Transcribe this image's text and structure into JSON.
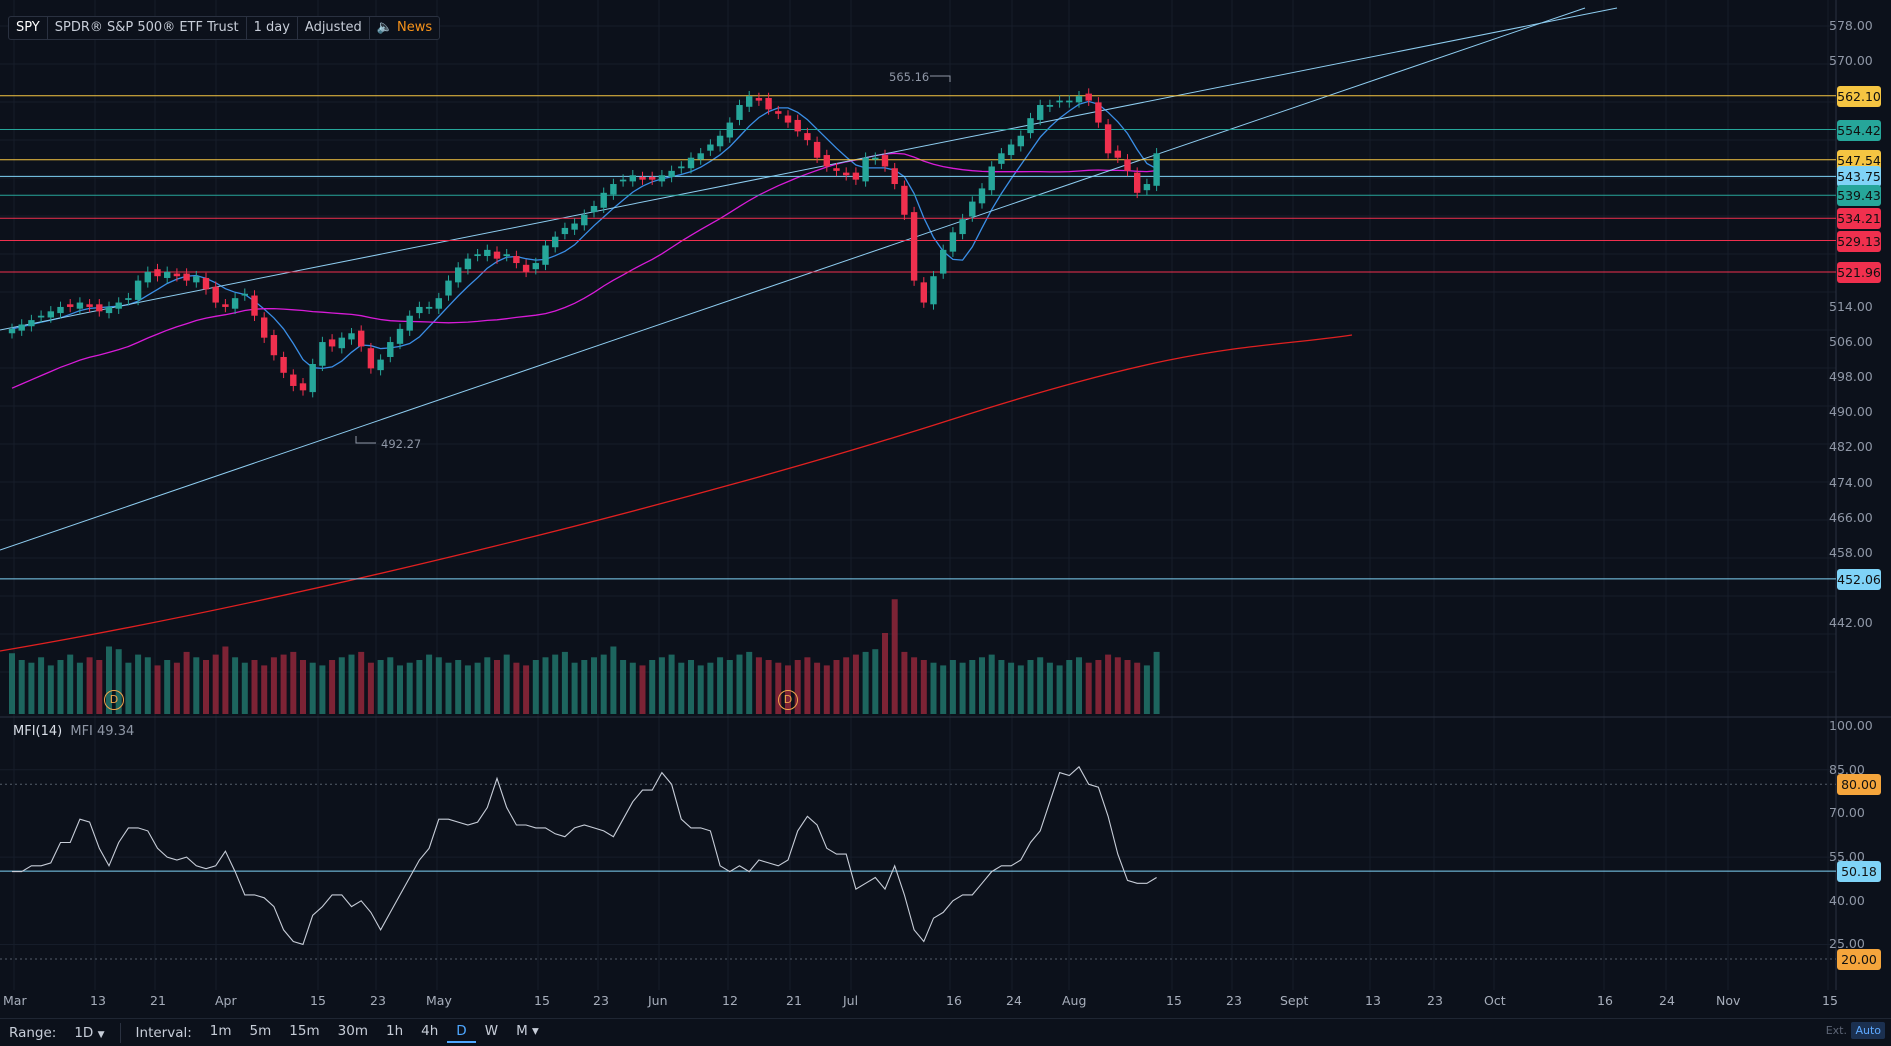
{
  "header": {
    "symbol": "SPY",
    "name": "SPDR® S&P 500® ETF Trust",
    "interval": "1 day",
    "mode": "Adjusted",
    "news": "News"
  },
  "price_axis_ticks": [
    "578.00",
    "570.00",
    "514.00",
    "506.00",
    "498.00",
    "490.00",
    "482.00",
    "474.00",
    "466.00",
    "458.00",
    "442.00"
  ],
  "price_tags": [
    {
      "label": "562.10",
      "color": "#f5c542"
    },
    {
      "label": "554.42",
      "color": "#26a69a"
    },
    {
      "label": "547.54",
      "color": "#f5c542"
    },
    {
      "label": "543.75",
      "color": "#7fd3f7"
    },
    {
      "label": "539.43",
      "color": "#26a69a"
    },
    {
      "label": "534.21",
      "color": "#f0304e"
    },
    {
      "label": "529.13",
      "color": "#f0304e"
    },
    {
      "label": "521.96",
      "color": "#f0304e"
    },
    {
      "label": "452.06",
      "color": "#7fd3f7"
    }
  ],
  "annotations": {
    "high": "565.16",
    "low": "492.27"
  },
  "dividend_marker": "D",
  "mfi": {
    "title": "MFI(14)",
    "value_label": "MFI 49.34",
    "axis_ticks": [
      "100.00",
      "85.00",
      "70.00",
      "55.00",
      "40.00",
      "25.00"
    ],
    "tag_80": "80.00",
    "tag_20": "20.00",
    "tag_current": "50.18"
  },
  "time_axis": [
    "Mar",
    "13",
    "21",
    "Apr",
    "15",
    "23",
    "May",
    "15",
    "23",
    "Jun",
    "12",
    "21",
    "Jul",
    "16",
    "24",
    "Aug",
    "15",
    "23",
    "Sept",
    "13",
    "23",
    "Oct",
    "16",
    "24",
    "Nov",
    "15"
  ],
  "bottom_bar": {
    "range_label": "Range:",
    "range_value": "1D",
    "interval_label": "Interval:",
    "intervals": [
      "1m",
      "5m",
      "15m",
      "30m",
      "1h",
      "4h",
      "D",
      "W",
      "M"
    ],
    "active_interval": "D",
    "ext": "Ext.",
    "auto": "Auto"
  },
  "colors": {
    "background": "#0c111b",
    "up": "#26a69a",
    "down": "#f0304e",
    "ma_fast": "#3a8ee6",
    "ma_mid": "#d81bd8",
    "ma_slow": "#e02020",
    "trendline": "#8ecdf0",
    "mfi_line": "#c7cdd8"
  },
  "chart_data": {
    "type": "candlestick",
    "symbol": "SPY",
    "interval": "1 day",
    "x_range": [
      "Mar",
      "Nov 15"
    ],
    "ylim": [
      436,
      582
    ],
    "grid": true,
    "close_approx": [
      509,
      510,
      511,
      512,
      513,
      514,
      514,
      515,
      514,
      513,
      514,
      515,
      516,
      520,
      522,
      521,
      522,
      521,
      520,
      521,
      518,
      515,
      514,
      516,
      517,
      512,
      507,
      503,
      499,
      496,
      495,
      501,
      506,
      505,
      507,
      508,
      505,
      500,
      502,
      506,
      509,
      512,
      514,
      514,
      516,
      520,
      523,
      525,
      526,
      527,
      525,
      526,
      524,
      522,
      524,
      528,
      530,
      532,
      533,
      535,
      537,
      540,
      542,
      543,
      544,
      543,
      543,
      544,
      545,
      546,
      548,
      549,
      551,
      553,
      556,
      560,
      562,
      561,
      559,
      558,
      556,
      554,
      552,
      548,
      546,
      545,
      544,
      543,
      548,
      548,
      546,
      542,
      535,
      520,
      515,
      521,
      527,
      531,
      534,
      538,
      541,
      546,
      549,
      551,
      553,
      557,
      560,
      560,
      561,
      561,
      562,
      561,
      556,
      549,
      548,
      545,
      540,
      542,
      549
    ],
    "moving_averages": [
      {
        "name": "MA fast",
        "color": "#3a8ee6"
      },
      {
        "name": "MA mid",
        "color": "#d81bd8"
      },
      {
        "name": "MA slow",
        "color": "#e02020"
      }
    ],
    "horizontal_levels": [
      562.1,
      554.42,
      547.54,
      543.75,
      539.43,
      534.21,
      529.13,
      521.96,
      452.06
    ],
    "high_annotation": 565.16,
    "low_annotation": 492.27,
    "volume_approx": [
      45,
      40,
      38,
      42,
      36,
      40,
      44,
      38,
      42,
      40,
      50,
      48,
      38,
      44,
      42,
      36,
      40,
      38,
      46,
      42,
      40,
      44,
      50,
      42,
      38,
      40,
      36,
      42,
      44,
      46,
      40,
      38,
      36,
      40,
      42,
      44,
      46,
      38,
      40,
      42,
      36,
      38,
      40,
      44,
      42,
      38,
      40,
      36,
      38,
      42,
      40,
      44,
      38,
      36,
      40,
      42,
      44,
      46,
      38,
      40,
      42,
      44,
      50,
      40,
      38,
      36,
      40,
      42,
      44,
      38,
      40,
      36,
      38,
      42,
      40,
      44,
      46,
      42,
      40,
      38,
      36,
      40,
      42,
      38,
      36,
      40,
      42,
      44,
      46,
      48,
      60,
      85,
      46,
      42,
      40,
      38,
      36,
      40,
      38,
      40,
      42,
      44,
      40,
      38,
      36,
      40,
      42,
      38,
      36,
      40,
      42,
      38,
      40,
      44,
      42,
      40,
      38,
      36,
      46
    ],
    "mfi": {
      "period": 14,
      "value": 49.34,
      "levels": [
        80,
        50.18,
        20
      ],
      "ylim": [
        20,
        100
      ],
      "values_approx": [
        50,
        50,
        52,
        52,
        53,
        60,
        60,
        68,
        67,
        58,
        52,
        60,
        65,
        65,
        64,
        58,
        55,
        54,
        55,
        52,
        51,
        52,
        57,
        50,
        42,
        42,
        41,
        38,
        30,
        26,
        25,
        35,
        38,
        42,
        42,
        38,
        40,
        36,
        30,
        36,
        42,
        48,
        54,
        58,
        68,
        68,
        67,
        66,
        67,
        72,
        82,
        72,
        66,
        66,
        65,
        65,
        63,
        62,
        65,
        66,
        65,
        64,
        62,
        68,
        74,
        78,
        78,
        84,
        80,
        68,
        65,
        65,
        64,
        52,
        50,
        52,
        50,
        54,
        53,
        52,
        54,
        64,
        69,
        66,
        58,
        56,
        56,
        44,
        46,
        48,
        44,
        52,
        42,
        30,
        26,
        34,
        36,
        40,
        42,
        42,
        46,
        50,
        52,
        52,
        54,
        60,
        64,
        74,
        84,
        83,
        86,
        80,
        79,
        69,
        56,
        47,
        46,
        46,
        48
      ]
    }
  }
}
